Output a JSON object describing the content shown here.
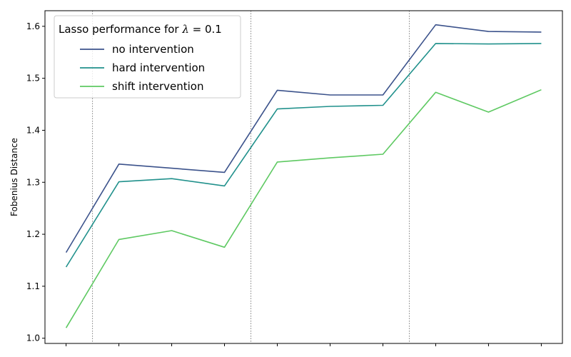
{
  "chart_data": {
    "type": "line",
    "ylabel": "Fobenius Distance",
    "ylim": [
      0.99,
      1.63
    ],
    "yticks": [
      1.0,
      1.1,
      1.2,
      1.3,
      1.4,
      1.5,
      1.6
    ],
    "ytick_labels": [
      "1.0",
      "1.1",
      "1.2",
      "1.3",
      "1.4",
      "1.5",
      "1.6"
    ],
    "x": [
      1,
      2,
      3,
      4,
      5,
      6,
      7,
      8,
      9,
      10
    ],
    "xlim": [
      0.6,
      10.4
    ],
    "group_separators": [
      1.5,
      4.5,
      7.5
    ],
    "grid": false,
    "legend": {
      "title": "Lasso performance for λ = 0.1",
      "placement": "top-left"
    },
    "series": [
      {
        "name": "no intervention",
        "color": "#3b528b",
        "values": [
          1.165,
          1.335,
          1.327,
          1.319,
          1.477,
          1.468,
          1.468,
          1.603,
          1.59,
          1.589
        ]
      },
      {
        "name": "hard intervention",
        "color": "#21918c",
        "values": [
          1.137,
          1.301,
          1.307,
          1.293,
          1.441,
          1.446,
          1.448,
          1.567,
          1.566,
          1.567
        ]
      },
      {
        "name": "shift intervention",
        "color": "#5ec962",
        "values": [
          1.02,
          1.19,
          1.207,
          1.175,
          1.339,
          1.347,
          1.354,
          1.473,
          1.435,
          1.478
        ]
      }
    ]
  }
}
